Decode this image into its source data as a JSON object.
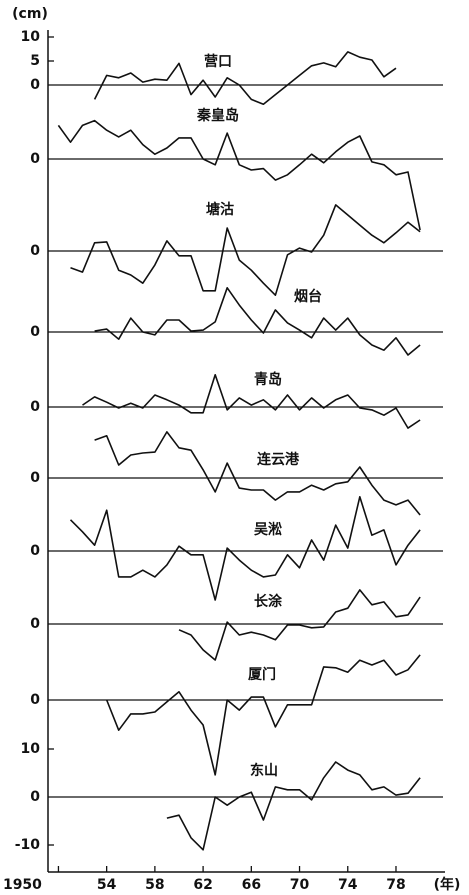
{
  "chart_data": [
    {
      "type": "line",
      "title": "营口",
      "y_label": "(cm)",
      "xlim": [
        1949.3,
        1981.9
      ],
      "ylim": [
        -5,
        10
      ],
      "yticks": [
        10,
        5,
        0
      ],
      "x": [
        1950,
        1951,
        1952,
        1953,
        1954,
        1955,
        1956,
        1957,
        1958,
        1959,
        1960,
        1961,
        1962,
        1963,
        1964,
        1965,
        1966,
        1967,
        1968,
        1969,
        1970,
        1971,
        1972,
        1973,
        1974,
        1975,
        1976,
        1977,
        1978,
        1979,
        1980
      ],
      "values": [
        null,
        null,
        null,
        -3,
        2,
        1.5,
        2.5,
        0.6,
        1.2,
        1,
        4.5,
        -2,
        1,
        -2.5,
        1.5,
        0,
        -3,
        -4,
        -2,
        0,
        2,
        4,
        4.6,
        3.8,
        6.9,
        5.8,
        5.2,
        1.7,
        3.5,
        null,
        null
      ]
    },
    {
      "type": "line",
      "title": "秦皇岛",
      "xlim": [
        1949.3,
        1981.9
      ],
      "ylim": [
        -15,
        10
      ],
      "yticks": [
        0
      ],
      "x": [
        1950,
        1951,
        1952,
        1953,
        1954,
        1955,
        1956,
        1957,
        1958,
        1959,
        1960,
        1961,
        1962,
        1963,
        1964,
        1965,
        1966,
        1967,
        1968,
        1969,
        1970,
        1971,
        1972,
        1973,
        1974,
        1975,
        1976,
        1977,
        1978,
        1979,
        1980
      ],
      "values": [
        7,
        3.5,
        7,
        8,
        6,
        4.6,
        6,
        3,
        1,
        2.3,
        4.4,
        4.4,
        0,
        -1.2,
        5.4,
        -1.2,
        -2.3,
        -2,
        -4.4,
        -3.3,
        -1.2,
        1,
        -0.8,
        1.5,
        3.5,
        4.8,
        -0.6,
        -1.2,
        -3.3,
        -2.7,
        -14.8
      ]
    },
    {
      "type": "line",
      "title": "塘沽",
      "xlim": [
        1949.3,
        1981.9
      ],
      "ylim": [
        -10,
        10
      ],
      "yticks": [
        0
      ],
      "x": [
        1950,
        1951,
        1952,
        1953,
        1954,
        1955,
        1956,
        1957,
        1958,
        1959,
        1960,
        1961,
        1962,
        1963,
        1964,
        1965,
        1966,
        1967,
        1968,
        1969,
        1970,
        1971,
        1972,
        1973,
        1974,
        1975,
        1976,
        1977,
        1978,
        1979,
        1980
      ],
      "values": [
        null,
        -3.5,
        -4.4,
        1.7,
        1.9,
        -4,
        -5,
        -6.7,
        -2.9,
        2.1,
        -1,
        -1,
        -8.3,
        -8.3,
        4.8,
        -1.9,
        -4,
        -6.7,
        -9.2,
        -0.8,
        0.6,
        -0.2,
        3.3,
        9.6,
        7.5,
        5.4,
        3.3,
        1.7,
        3.8,
        6,
        4
      ]
    },
    {
      "type": "line",
      "title": "烟台",
      "xlim": [
        1949.3,
        1981.9
      ],
      "ylim": [
        -5,
        10
      ],
      "yticks": [
        0
      ],
      "x": [
        1950,
        1951,
        1952,
        1953,
        1954,
        1955,
        1956,
        1957,
        1958,
        1959,
        1960,
        1961,
        1962,
        1963,
        1964,
        1965,
        1966,
        1967,
        1968,
        1969,
        1970,
        1971,
        1972,
        1973,
        1974,
        1975,
        1976,
        1977,
        1978,
        1979,
        1980
      ],
      "values": [
        null,
        null,
        null,
        0.2,
        0.6,
        -1.5,
        2.9,
        0,
        -0.6,
        2.5,
        2.5,
        0.2,
        0.4,
        2.1,
        9.2,
        5.6,
        2.5,
        -0.2,
        4.6,
        1.9,
        0.4,
        -1.2,
        2.9,
        0.4,
        2.9,
        -0.6,
        -2.7,
        -3.8,
        -1.2,
        -4.8,
        -2.7
      ]
    },
    {
      "type": "line",
      "title": "青岛",
      "xlim": [
        1949.3,
        1981.9
      ],
      "ylim": [
        -5,
        8
      ],
      "yticks": [
        0
      ],
      "x": [
        1950,
        1951,
        1952,
        1953,
        1954,
        1955,
        1956,
        1957,
        1958,
        1959,
        1960,
        1961,
        1962,
        1963,
        1964,
        1965,
        1966,
        1967,
        1968,
        1969,
        1970,
        1971,
        1972,
        1973,
        1974,
        1975,
        1976,
        1977,
        1978,
        1979,
        1980
      ],
      "values": [
        null,
        null,
        0.4,
        2.1,
        1,
        -0.2,
        0.8,
        -0.2,
        2.5,
        1.5,
        0.4,
        -1.2,
        -1.2,
        6.7,
        -0.6,
        1.9,
        0.4,
        1.5,
        -0.6,
        2.5,
        -0.6,
        1.9,
        -0.2,
        1.5,
        2.5,
        -0.2,
        -0.6,
        -1.7,
        -0.2,
        -4.4,
        -2.7
      ]
    },
    {
      "type": "line",
      "title": "连云港",
      "xlim": [
        1949.3,
        1981.9
      ],
      "ylim": [
        -8,
        10
      ],
      "yticks": [
        0
      ],
      "x": [
        1950,
        1951,
        1952,
        1953,
        1954,
        1955,
        1956,
        1957,
        1958,
        1959,
        1960,
        1961,
        1962,
        1963,
        1964,
        1965,
        1966,
        1967,
        1968,
        1969,
        1970,
        1971,
        1972,
        1973,
        1974,
        1975,
        1976,
        1977,
        1978,
        1979,
        1980
      ],
      "values": [
        null,
        null,
        null,
        7.9,
        8.8,
        2.7,
        4.8,
        5.2,
        5.4,
        9.6,
        6.3,
        5.8,
        1.7,
        -2.9,
        3.1,
        -2.1,
        -2.5,
        -2.5,
        -4.6,
        -2.9,
        -2.9,
        -1.5,
        -2.5,
        -1.2,
        -0.8,
        2.3,
        -1.5,
        -4.6,
        -5.6,
        -4.6,
        -7.7
      ]
    },
    {
      "type": "line",
      "title": "吴淞",
      "xlim": [
        1949.3,
        1981.9
      ],
      "ylim": [
        -11,
        12
      ],
      "yticks": [
        0
      ],
      "x": [
        1950,
        1951,
        1952,
        1953,
        1954,
        1955,
        1956,
        1957,
        1958,
        1959,
        1960,
        1961,
        1962,
        1963,
        1964,
        1965,
        1966,
        1967,
        1968,
        1969,
        1970,
        1971,
        1972,
        1973,
        1974,
        1975,
        1976,
        1977,
        1978,
        1979,
        1980
      ],
      "values": [
        null,
        6.5,
        4,
        1.2,
        8.5,
        -5.4,
        -5.4,
        -4,
        -5.4,
        -2.9,
        1,
        -0.8,
        -0.8,
        -10.2,
        0.6,
        -1.9,
        -4,
        -5.4,
        -5,
        -0.8,
        -3.5,
        2.3,
        -1.9,
        5.4,
        0.6,
        11.3,
        3.3,
        4.4,
        -2.9,
        1.2,
        4.4
      ]
    },
    {
      "type": "line",
      "title": "长涂",
      "xlim": [
        1949.3,
        1981.9
      ],
      "ylim": [
        -8,
        8
      ],
      "yticks": [
        0
      ],
      "x": [
        1950,
        1951,
        1952,
        1953,
        1954,
        1955,
        1956,
        1957,
        1958,
        1959,
        1960,
        1961,
        1962,
        1963,
        1964,
        1965,
        1966,
        1967,
        1968,
        1969,
        1970,
        1971,
        1972,
        1973,
        1974,
        1975,
        1976,
        1977,
        1978,
        1979,
        1980
      ],
      "values": [
        null,
        null,
        null,
        null,
        null,
        null,
        null,
        null,
        null,
        null,
        -1.2,
        -2.3,
        -5.4,
        -7.5,
        0.4,
        -2.3,
        -1.7,
        -2.3,
        -3.3,
        -0.2,
        -0.2,
        -0.8,
        -0.6,
        2.5,
        3.3,
        7.1,
        4,
        4.6,
        1.5,
        1.9,
        5.6
      ]
    },
    {
      "type": "line",
      "title": "厦门",
      "xlim": [
        1949.3,
        1981.9
      ],
      "ylim": [
        -16,
        10
      ],
      "yticks": [
        0
      ],
      "x": [
        1950,
        1951,
        1952,
        1953,
        1954,
        1955,
        1956,
        1957,
        1958,
        1959,
        1960,
        1961,
        1962,
        1963,
        1964,
        1965,
        1966,
        1967,
        1968,
        1969,
        1970,
        1971,
        1972,
        1973,
        1974,
        1975,
        1976,
        1977,
        1978,
        1979,
        1980
      ],
      "values": [
        null,
        null,
        null,
        null,
        0,
        -6.3,
        -2.9,
        -2.9,
        -2.5,
        -0.4,
        1.7,
        -2.1,
        -5.2,
        -15.6,
        0,
        -2.1,
        0.6,
        0.6,
        -5.6,
        -1,
        -1,
        -1,
        6.9,
        6.7,
        5.8,
        8.3,
        7.3,
        8.3,
        5.2,
        6.3,
        9.4
      ]
    },
    {
      "type": "line",
      "title": "东山",
      "x_label": "(年)",
      "xlim": [
        1949.3,
        1981.9
      ],
      "ylim": [
        -12,
        11
      ],
      "yticks": [
        10,
        0,
        {
          "value": -10,
          "label": "-10"
        }
      ],
      "xticks": [
        {
          "value": 1950,
          "label": "1950"
        },
        {
          "value": 1954,
          "label": "54"
        },
        {
          "value": 1958,
          "label": "58"
        },
        {
          "value": 1962,
          "label": "62"
        },
        {
          "value": 1966,
          "label": "66"
        },
        {
          "value": 1970,
          "label": "70"
        },
        {
          "value": 1974,
          "label": "74"
        },
        {
          "value": 1978,
          "label": "78"
        }
      ],
      "x": [
        1950,
        1951,
        1952,
        1953,
        1954,
        1955,
        1956,
        1957,
        1958,
        1959,
        1960,
        1961,
        1962,
        1963,
        1964,
        1965,
        1966,
        1967,
        1968,
        1969,
        1970,
        1971,
        1972,
        1973,
        1974,
        1975,
        1976,
        1977,
        1978,
        1979,
        1980
      ],
      "values": [
        null,
        null,
        null,
        null,
        null,
        null,
        null,
        null,
        null,
        -4.4,
        -3.8,
        -8.5,
        -11,
        0,
        -1.7,
        0,
        1,
        -4.8,
        2.1,
        1.5,
        1.5,
        -0.6,
        4,
        7.3,
        5.6,
        4.6,
        1.5,
        2.1,
        0.4,
        0.8,
        4
      ]
    }
  ]
}
